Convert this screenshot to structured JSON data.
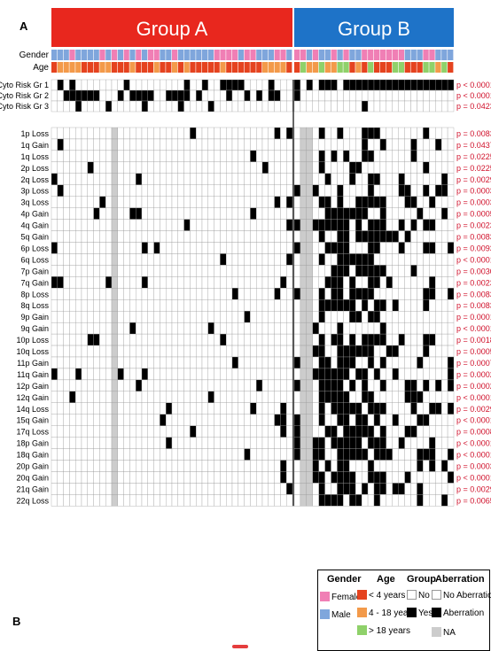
{
  "panel_labels": {
    "a": "A",
    "b": "B"
  },
  "groups": [
    {
      "label": "Group A",
      "color": "#e8271e"
    },
    {
      "label": "Group B",
      "color": "#1e73c8"
    }
  ],
  "annotation_rows": [
    {
      "label": "Gender"
    },
    {
      "label": "Age"
    }
  ],
  "rows": [
    {
      "label": "Cyto Risk Gr 1",
      "p": "p < 0.0001"
    },
    {
      "label": "Cyto Risk Gr 2",
      "p": "p < 0.0001"
    },
    {
      "label": "Cyto Risk Gr 3",
      "p": "p = 0.0423"
    },
    {
      "label": "1p Loss",
      "p": "p = 0.0083"
    },
    {
      "label": "1q Gain",
      "p": "p = 0.0437"
    },
    {
      "label": "1q Loss",
      "p": "p = 0.0225"
    },
    {
      "label": "2p Loss",
      "p": "p = 0.0225"
    },
    {
      "label": "2q Loss",
      "p": "p = 0.0029"
    },
    {
      "label": "3p Loss",
      "p": "p = 0.0003"
    },
    {
      "label": "3q Loss",
      "p": "p = 0.0003"
    },
    {
      "label": "4p Gain",
      "p": "p = 0.0005"
    },
    {
      "label": "4q Gain",
      "p": "p = 0.0023"
    },
    {
      "label": "5q Gain",
      "p": "p = 0.0083"
    },
    {
      "label": "6p Loss",
      "p": "p = 0.0093"
    },
    {
      "label": "6q Loss",
      "p": "p < 0.0001"
    },
    {
      "label": "7p Gain",
      "p": "p = 0.0030"
    },
    {
      "label": "7q Gain",
      "p": "p = 0.0023"
    },
    {
      "label": "8p Loss",
      "p": "p = 0.0083"
    },
    {
      "label": "8q Loss",
      "p": "p = 0.0083"
    },
    {
      "label": "9p Gain",
      "p": "p = 0.0001"
    },
    {
      "label": "9q Gain",
      "p": "p < 0.0001"
    },
    {
      "label": "10p Loss",
      "p": "p = 0.0018"
    },
    {
      "label": "10q Loss",
      "p": "p = 0.0005"
    },
    {
      "label": "11p Gain",
      "p": "p = 0.0007"
    },
    {
      "label": "11q Gain",
      "p": "p = 0.0002"
    },
    {
      "label": "12p Gain",
      "p": "p = 0.0002"
    },
    {
      "label": "12q Gain",
      "p": "p < 0.0001"
    },
    {
      "label": "14q Loss",
      "p": "p = 0.0029"
    },
    {
      "label": "15q Gain",
      "p": "p < 0.0001"
    },
    {
      "label": "17q Loss",
      "p": "p = 0.0008"
    },
    {
      "label": "18p Gain",
      "p": "p < 0.0001"
    },
    {
      "label": "18q Gain",
      "p": "p < 0.0001"
    },
    {
      "label": "20p Gain",
      "p": "p = 0.0003"
    },
    {
      "label": "20q Gain",
      "p": "p < 0.0001"
    },
    {
      "label": "21q Gain",
      "p": "p = 0.0029"
    },
    {
      "label": "22q Loss",
      "p": "p = 0.0065"
    }
  ],
  "colors": {
    "female": "#f07fb5",
    "male": "#7fa6dc",
    "age_lt4": "#e5431f",
    "age_4_18": "#f39a4a",
    "age_gt18": "#8fd16a",
    "aberration": "#000000",
    "no_aberration": "#ffffff",
    "na": "#cccccc",
    "pvalue": "#d0102a"
  },
  "legend": {
    "gender_title": "Gender",
    "age_title": "Age",
    "group_title": "Group",
    "aberration_title": "Aberration",
    "female": "Female",
    "male": "Male",
    "age_lt4": "< 4 years",
    "age_4_18": "4 - 18 years",
    "age_gt18": "> 18 years",
    "no": "No",
    "yes": "Yes",
    "no_aberration": "No Aberration",
    "aberration": "Aberration",
    "na": "NA"
  }
}
